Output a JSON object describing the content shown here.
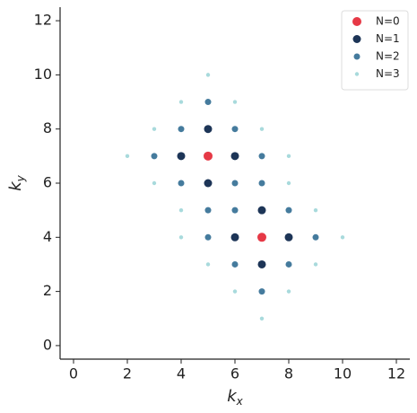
{
  "chart_data": {
    "type": "scatter",
    "xlabel": {
      "symbol": "k",
      "subscript": "x"
    },
    "ylabel": {
      "symbol": "k",
      "subscript": "y"
    },
    "xlim": [
      -0.5,
      12.5
    ],
    "ylim": [
      -0.5,
      12.5
    ],
    "xticks": [
      0,
      2,
      4,
      6,
      8,
      10,
      12
    ],
    "yticks": [
      0,
      2,
      4,
      6,
      8,
      10,
      12
    ],
    "legend": "upper right",
    "series": [
      {
        "name": "N=0",
        "color": "#e63946",
        "x": [
          5,
          7
        ],
        "y": [
          7,
          4
        ]
      },
      {
        "name": "N=1",
        "color": "#1d3557",
        "x": [
          4,
          5,
          6,
          5,
          7,
          6,
          8,
          7
        ],
        "y": [
          7,
          8,
          7,
          6,
          5,
          4,
          4,
          3
        ]
      },
      {
        "name": "N=2",
        "color": "#457b9d",
        "x": [
          5,
          4,
          6,
          3,
          7,
          4,
          6,
          5,
          6,
          8,
          7,
          5,
          9,
          6,
          8,
          7
        ],
        "y": [
          9,
          8,
          8,
          7,
          7,
          6,
          6,
          5,
          5,
          5,
          6,
          4,
          4,
          3,
          3,
          2
        ]
      },
      {
        "name": "N=3",
        "color": "#a8dadc",
        "x": [
          5,
          4,
          6,
          3,
          7,
          2,
          8,
          3,
          8,
          4,
          9,
          4,
          10,
          5,
          9,
          6,
          8,
          7
        ],
        "y": [
          10,
          9,
          9,
          8,
          8,
          7,
          7,
          6,
          6,
          5,
          5,
          4,
          4,
          3,
          3,
          2,
          2,
          1
        ]
      }
    ]
  }
}
